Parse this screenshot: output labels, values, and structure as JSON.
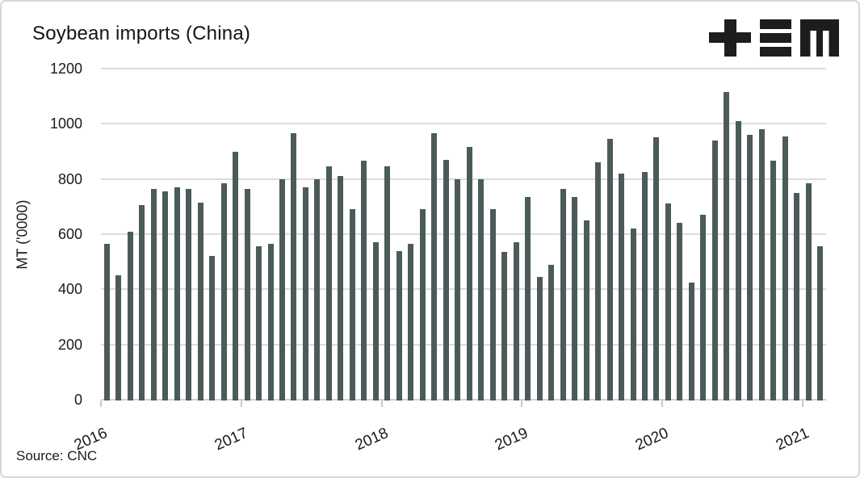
{
  "title": "Soybean imports (China)",
  "logo": {
    "icon": "plus-triplebar-m-logo"
  },
  "source_label": "Source: CNC",
  "y_axis": {
    "label": "MT ('0000)",
    "ticks": [
      1200,
      1000,
      800,
      600,
      400,
      200,
      0
    ]
  },
  "x_axis": {
    "ticks": [
      "2016",
      "2017",
      "2018",
      "2019",
      "2020",
      "2021"
    ]
  },
  "colors": {
    "bar": "#4b5b5a",
    "gridline": "#dcdcdc",
    "axis": "#d2d2d2",
    "text": "#1a1a1a",
    "logo": "#1d1d1b",
    "frame_border": "#d8d8d8"
  },
  "chart_data": {
    "type": "bar",
    "title": "Soybean imports (China)",
    "xlabel": "",
    "ylabel": "MT ('0000)",
    "ylim": [
      0,
      1200
    ],
    "grid": "horizontal",
    "legend": "none",
    "x": [
      "2016-01",
      "2016-02",
      "2016-03",
      "2016-04",
      "2016-05",
      "2016-06",
      "2016-07",
      "2016-08",
      "2016-09",
      "2016-10",
      "2016-11",
      "2016-12",
      "2017-01",
      "2017-02",
      "2017-03",
      "2017-04",
      "2017-05",
      "2017-06",
      "2017-07",
      "2017-08",
      "2017-09",
      "2017-10",
      "2017-11",
      "2017-12",
      "2018-01",
      "2018-02",
      "2018-03",
      "2018-04",
      "2018-05",
      "2018-06",
      "2018-07",
      "2018-08",
      "2018-09",
      "2018-10",
      "2018-11",
      "2018-12",
      "2019-01",
      "2019-02",
      "2019-03",
      "2019-04",
      "2019-05",
      "2019-06",
      "2019-07",
      "2019-08",
      "2019-09",
      "2019-10",
      "2019-11",
      "2019-12",
      "2020-01",
      "2020-02",
      "2020-03",
      "2020-04",
      "2020-05",
      "2020-06",
      "2020-07",
      "2020-08",
      "2020-09",
      "2020-10",
      "2020-11",
      "2020-12",
      "2021-01",
      "2021-02"
    ],
    "values": [
      565,
      450,
      610,
      705,
      765,
      755,
      770,
      765,
      715,
      520,
      785,
      900,
      765,
      555,
      565,
      800,
      965,
      770,
      800,
      845,
      810,
      690,
      865,
      570,
      845,
      540,
      565,
      690,
      965,
      870,
      800,
      915,
      800,
      690,
      535,
      570,
      735,
      445,
      490,
      765,
      735,
      650,
      860,
      945,
      820,
      620,
      825,
      950,
      710,
      640,
      425,
      670,
      940,
      1115,
      1010,
      960,
      980,
      865,
      955,
      750,
      785,
      555
    ],
    "x_tick_years": [
      "2016",
      "2017",
      "2018",
      "2019",
      "2020",
      "2021"
    ],
    "bars_per_year": 12
  }
}
